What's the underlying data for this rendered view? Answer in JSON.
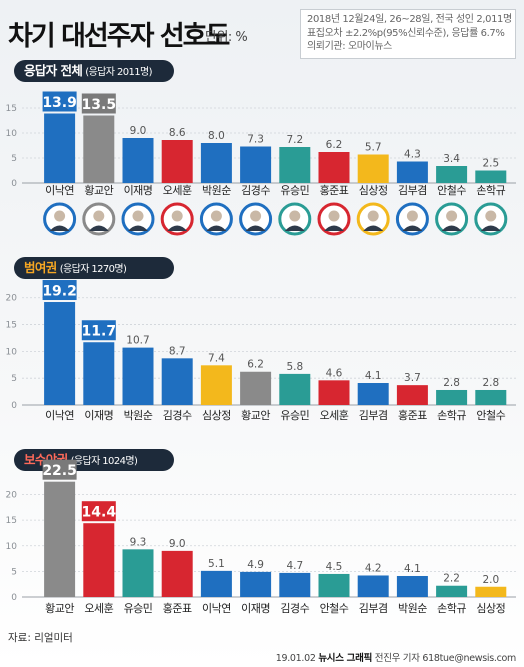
{
  "header": {
    "title": "차기 대선주자 선호도",
    "unit": "단위: %",
    "meta_lines": [
      "2018년 12월24일, 26~28일, 전국 성인 2,011명",
      "표집오차 ±2.2%p(95%신뢰수준), 응답률 6.7%",
      "의뢰기관: 오마이뉴스"
    ]
  },
  "footer": {
    "source": "자료: 리얼미터",
    "credit_date": "19.01.02",
    "credit_org": "뉴시스 그래픽",
    "credit_author": "전진우 기자 618tue@newsis.com"
  },
  "colors": {
    "blue": "#1f6fc0",
    "gray": "#8a8a8a",
    "red": "#d72630",
    "yellow": "#f3b81c",
    "teal": "#2a9c95",
    "label_blue": "#1f6fc0",
    "label_gray": "#7a7a7a",
    "label_red": "#d72630"
  },
  "chart_data": [
    {
      "type": "bar",
      "section_title": "응답자 전체",
      "section_sub": "(응답자 2011명)",
      "ylim": [
        0,
        20
      ],
      "yticks": [
        0,
        5,
        10,
        15
      ],
      "categories": [
        "이낙연",
        "황교안",
        "이재명",
        "오세훈",
        "박원순",
        "김경수",
        "유승민",
        "홍준표",
        "심상정",
        "김부겸",
        "안철수",
        "손학규"
      ],
      "values": [
        13.9,
        13.5,
        9.0,
        8.6,
        8.0,
        7.3,
        7.2,
        6.2,
        5.7,
        4.3,
        3.4,
        2.5
      ],
      "value_labels": [
        "13.9",
        "13.5",
        "9.0",
        "8.6",
        "8.0",
        "7.3",
        "7.2",
        "6.2",
        "5.7",
        "4.3",
        "3.4",
        "2.5"
      ],
      "bar_colors": [
        "blue",
        "gray",
        "blue",
        "red",
        "blue",
        "blue",
        "teal",
        "red",
        "yellow",
        "blue",
        "teal",
        "teal"
      ],
      "highlight_labels": [
        0,
        1
      ],
      "grid": true
    },
    {
      "type": "bar",
      "section_title": "범여권",
      "section_sub": "(응답자 1270명)",
      "ylim": [
        0,
        22
      ],
      "yticks": [
        0,
        5,
        10,
        15,
        20
      ],
      "categories": [
        "이낙연",
        "이재명",
        "박원순",
        "김경수",
        "심상정",
        "황교안",
        "유승민",
        "오세훈",
        "김부겸",
        "홍준표",
        "손학규",
        "안철수"
      ],
      "values": [
        19.2,
        11.7,
        10.7,
        8.7,
        7.4,
        6.2,
        5.8,
        4.6,
        4.1,
        3.7,
        2.8,
        2.8
      ],
      "value_labels": [
        "19.2",
        "11.7",
        "10.7",
        "8.7",
        "7.4",
        "6.2",
        "5.8",
        "4.6",
        "4.1",
        "3.7",
        "2.8",
        "2.8"
      ],
      "bar_colors": [
        "blue",
        "blue",
        "blue",
        "blue",
        "yellow",
        "gray",
        "teal",
        "red",
        "blue",
        "red",
        "teal",
        "teal"
      ],
      "highlight_labels": [
        0,
        1
      ],
      "grid": true
    },
    {
      "type": "bar",
      "section_title": "보수야권",
      "section_sub": "(응답자 1024명)",
      "ylim": [
        0,
        24
      ],
      "yticks": [
        0,
        5,
        10,
        15,
        20
      ],
      "categories": [
        "황교안",
        "오세훈",
        "유승민",
        "홍준표",
        "이낙연",
        "이재명",
        "김경수",
        "안철수",
        "김부겸",
        "박원순",
        "손학규",
        "심상정"
      ],
      "values": [
        22.5,
        14.4,
        9.3,
        9.0,
        5.1,
        4.9,
        4.7,
        4.5,
        4.2,
        4.1,
        2.2,
        2.0
      ],
      "value_labels": [
        "22.5",
        "14.4",
        "9.3",
        "9.0",
        "5.1",
        "4.9",
        "4.7",
        "4.5",
        "4.2",
        "4.1",
        "2.2",
        "2.0"
      ],
      "bar_colors": [
        "gray",
        "red",
        "teal",
        "red",
        "blue",
        "blue",
        "blue",
        "teal",
        "blue",
        "blue",
        "teal",
        "yellow"
      ],
      "highlight_labels": [
        0,
        1
      ],
      "grid": true
    }
  ]
}
